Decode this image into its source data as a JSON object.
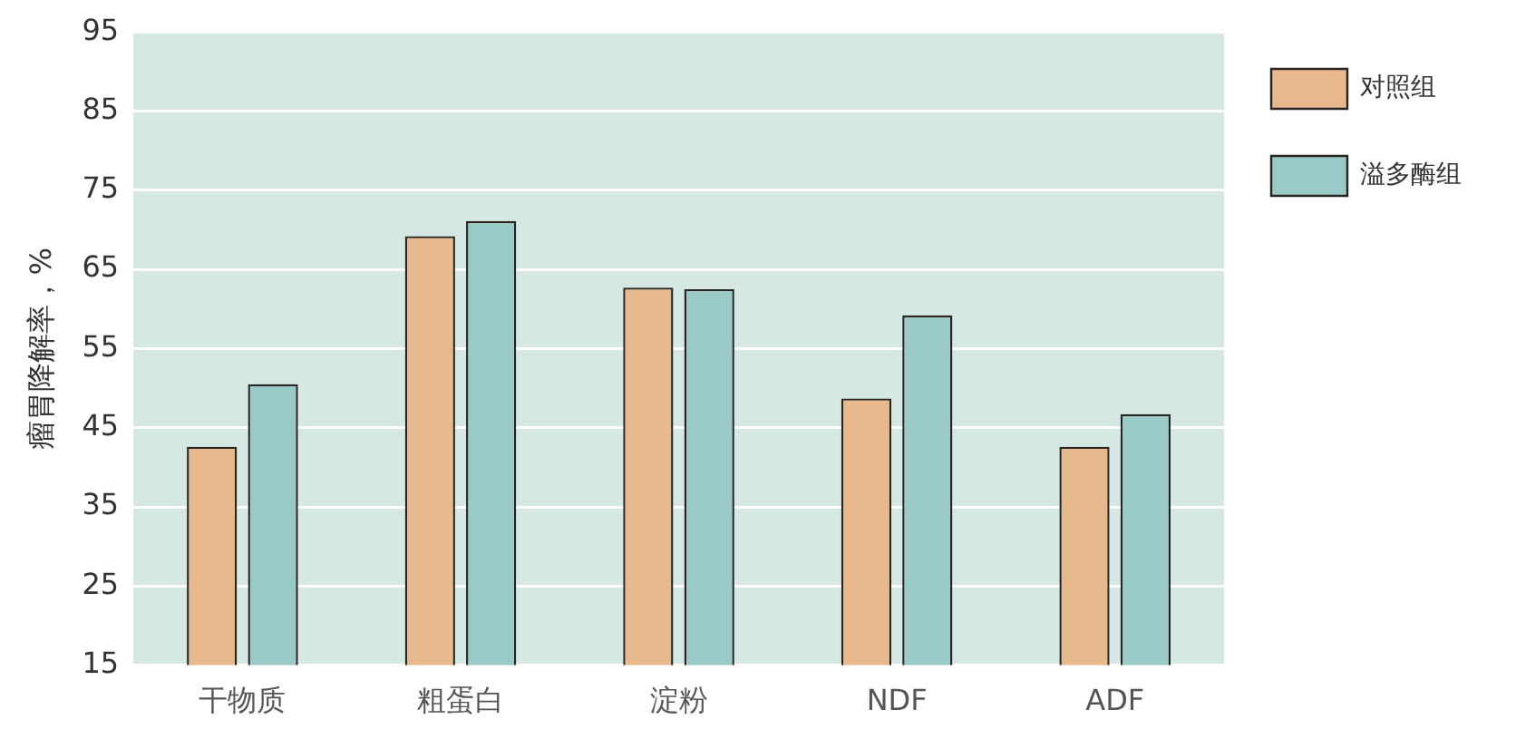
{
  "chart_data": {
    "type": "bar",
    "ylabel": "瘤胃降解率，%",
    "categories": [
      "干物质",
      "粗蛋白",
      "淀粉",
      "NDF",
      "ADF"
    ],
    "series": [
      {
        "name": "对照组",
        "color": "#e8b98c",
        "values": [
          42.6,
          69.2,
          62.7,
          48.7,
          42.6
        ]
      },
      {
        "name": "溢多酶组",
        "color": "#99cac7",
        "values": [
          50.5,
          71.1,
          62.5,
          59.2,
          46.7
        ]
      }
    ],
    "ylim": [
      15,
      95
    ],
    "yticks": [
      15,
      25,
      35,
      45,
      55,
      65,
      75,
      85,
      95
    ],
    "grid": "y",
    "legend": "top right"
  }
}
